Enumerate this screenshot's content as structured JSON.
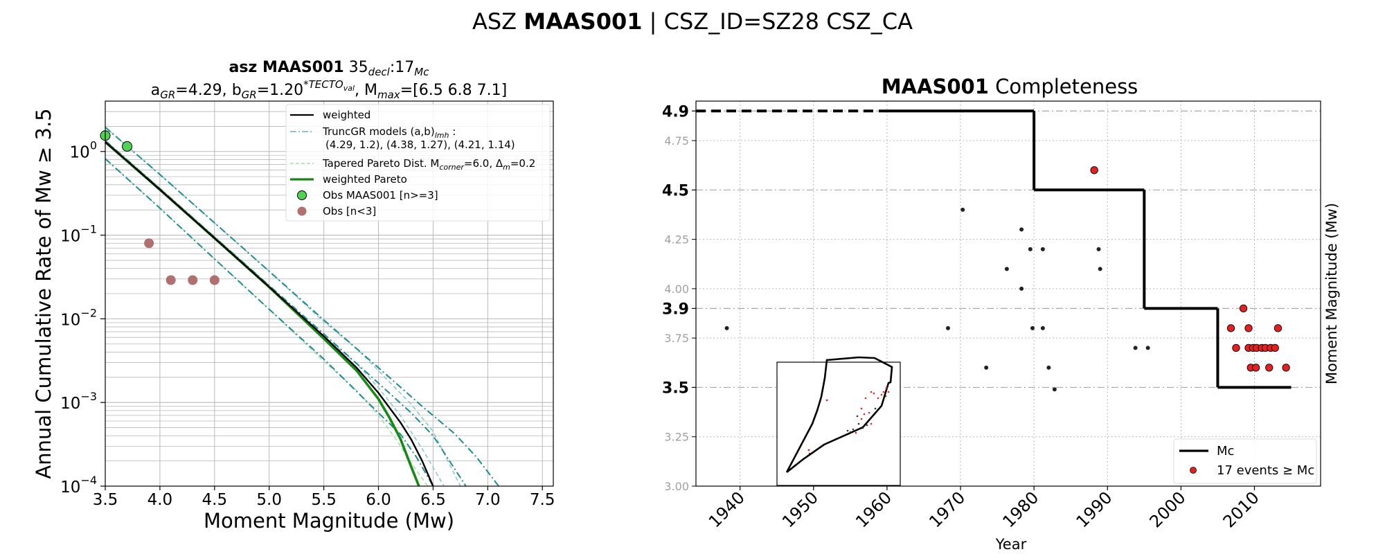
{
  "figure": {
    "suptitle_prefix": "ASZ",
    "suptitle_bold": "MAAS001",
    "suptitle_suffix": "| CSZ_ID=SZ28 CSZ_CA"
  },
  "colors": {
    "black": "#000000",
    "teal_dark": "#1f8a8f",
    "teal_light": "#8ac9c9",
    "green_light": "#a6dcae",
    "green": "#138a13",
    "obs_green": "#52d152",
    "obs_brown": "#b07070",
    "event_red": "#e62020",
    "grid": "#b8b8b8"
  },
  "chart_data": [
    {
      "type": "line",
      "title_line1_bold": "asz MAAS001",
      "title_line1_rest": "35",
      "title_line1_sub1": "decl",
      "title_line1_mid": ":17",
      "title_line1_sub2": "Mc",
      "title_line2": {
        "a_label": "a",
        "a_sub": "GR",
        "a_value": "=4.29,",
        "b_label": "b",
        "b_sub": "GR",
        "b_value": "=1.20",
        "b_sup": "*TECTO",
        "b_sup_sub": "val",
        "m_label": ", M",
        "m_sub": "max",
        "m_value": "=[6.5 6.8 7.1]"
      },
      "xlabel": "Moment Magnitude (Mw)",
      "ylabel": "Annual Cumulative Rate of Mw  ≥  3.5",
      "xlim": [
        3.5,
        7.6
      ],
      "ylim": [
        0.0001,
        4.0
      ],
      "yscale": "log",
      "grid": true,
      "legend_position": "top-right",
      "x_ticks": [
        "3.5",
        "4.0",
        "4.5",
        "5.0",
        "5.5",
        "6.0",
        "6.5",
        "7.0",
        "7.5"
      ],
      "y_ticks": [
        {
          "base": "10",
          "exp": "0"
        },
        {
          "base": "10",
          "exp": "−1"
        },
        {
          "base": "10",
          "exp": "−2"
        },
        {
          "base": "10",
          "exp": "−3"
        },
        {
          "base": "10",
          "exp": "−4"
        }
      ],
      "legend": {
        "weighted": "weighted",
        "trunc_label": "TruncGR models (a,b)",
        "trunc_sub": "lmh",
        "trunc_colon": " :",
        "trunc_values": "(4.29, 1.2), (4.38, 1.27), (4.21, 1.14)",
        "tapered_prefix": "Tapered Pareto Dist. M",
        "tapered_sub": "corner",
        "tapered_mid": "=6.0, Δ",
        "tapered_sub2": "m",
        "tapered_suffix": "=0.2",
        "weighted_pareto": "weighted Pareto",
        "obs_main": "Obs MAAS001 [n>=3]",
        "obs_small": "Obs [n<3]"
      },
      "series": [
        {
          "name": "weighted",
          "color": "#000000",
          "style": "solid",
          "x": [
            3.5,
            4.0,
            4.5,
            5.0,
            5.5,
            5.8,
            6.0,
            6.2,
            6.3,
            6.4,
            6.5
          ],
          "y": [
            1.3,
            0.35,
            0.092,
            0.024,
            0.0062,
            0.0026,
            0.0013,
            0.00058,
            0.00036,
            0.0002,
            0.0001
          ]
        },
        {
          "name": "truncgr_low",
          "color": "#1f8a8f",
          "style": "dashdot",
          "x": [
            3.5,
            4.0,
            4.5,
            5.0,
            5.5,
            6.0,
            6.2,
            6.35,
            6.5
          ],
          "y": [
            0.82,
            0.21,
            0.052,
            0.013,
            0.0033,
            0.00075,
            0.00042,
            0.00022,
            0.0001
          ]
        },
        {
          "name": "truncgr_mid",
          "color": "#1f8a8f",
          "style": "dashdot",
          "x": [
            3.5,
            4.0,
            4.5,
            5.0,
            5.5,
            6.0,
            6.3,
            6.5,
            6.65,
            6.8
          ],
          "y": [
            1.35,
            0.36,
            0.095,
            0.025,
            0.0066,
            0.0017,
            0.00075,
            0.0004,
            0.0002,
            0.0001
          ]
        },
        {
          "name": "truncgr_high",
          "color": "#1f8a8f",
          "style": "dashdot",
          "x": [
            3.5,
            4.0,
            4.5,
            5.0,
            5.5,
            6.0,
            6.4,
            6.7,
            6.9,
            7.1
          ],
          "y": [
            1.95,
            0.53,
            0.14,
            0.037,
            0.0097,
            0.0026,
            0.0009,
            0.00042,
            0.00022,
            0.0001
          ]
        },
        {
          "name": "tapered_low",
          "color": "#a6dcae",
          "style": "dashed",
          "x": [
            3.5,
            4.0,
            4.5,
            5.0,
            5.5,
            5.8,
            6.0,
            6.15,
            6.3,
            6.45
          ],
          "y": [
            0.82,
            0.21,
            0.052,
            0.013,
            0.0031,
            0.0014,
            0.0007,
            0.00038,
            0.00019,
            0.0001
          ]
        },
        {
          "name": "tapered_mid",
          "color": "#8ac9c9",
          "style": "dashed",
          "x": [
            3.5,
            4.0,
            4.5,
            5.0,
            5.5,
            5.8,
            6.0,
            6.2,
            6.4,
            6.6
          ],
          "y": [
            1.35,
            0.36,
            0.095,
            0.025,
            0.0062,
            0.0029,
            0.0015,
            0.0007,
            0.00028,
            0.0001
          ]
        },
        {
          "name": "tapered_high",
          "color": "#8ac9c9",
          "style": "dashed",
          "x": [
            3.5,
            4.0,
            4.5,
            5.0,
            5.5,
            5.8,
            6.0,
            6.3,
            6.5,
            6.75
          ],
          "y": [
            1.95,
            0.53,
            0.14,
            0.037,
            0.0092,
            0.0044,
            0.0024,
            0.00095,
            0.00045,
            0.0001
          ]
        },
        {
          "name": "weighted Pareto",
          "color": "#138a13",
          "style": "solid",
          "x": [
            3.5,
            4.0,
            4.5,
            5.0,
            5.5,
            5.8,
            6.0,
            6.1,
            6.2,
            6.3,
            6.37
          ],
          "y": [
            1.3,
            0.35,
            0.092,
            0.024,
            0.0058,
            0.0024,
            0.0011,
            0.00066,
            0.00037,
            0.00017,
            0.0001
          ]
        }
      ],
      "observations": [
        {
          "group": "main",
          "x": 3.5,
          "y": 1.55
        },
        {
          "group": "main",
          "x": 3.7,
          "y": 1.15
        },
        {
          "group": "small",
          "x": 3.9,
          "y": 0.08
        },
        {
          "group": "small",
          "x": 4.1,
          "y": 0.029
        },
        {
          "group": "small",
          "x": 4.3,
          "y": 0.029
        },
        {
          "group": "small",
          "x": 4.5,
          "y": 0.029
        }
      ]
    },
    {
      "type": "scatter",
      "title_bold": "MAAS001",
      "title_rest": "Completeness",
      "xlabel": "Year",
      "ylabel": "Moment Magnitude (Mw)",
      "xlim": [
        1934,
        2019
      ],
      "ylim": [
        3.0,
        4.95
      ],
      "grid": true,
      "legend_position": "lower-right",
      "x_ticks": [
        "1940",
        "1950",
        "1960",
        "1970",
        "1980",
        "1990",
        "2000",
        "2010"
      ],
      "y_ticks_minor": [
        "3.00",
        "3.25",
        "3.75",
        "4.00",
        "4.25",
        "4.75"
      ],
      "y_ticks_major": [
        "3.5",
        "3.9",
        "4.5",
        "4.9"
      ],
      "legend": {
        "mc": "Mc",
        "events": "17 events  ≥  Mc"
      },
      "mc_steps": [
        {
          "x0": 1934,
          "x1": 1960,
          "y": 4.9,
          "style": "dashed"
        },
        {
          "x0": 1960,
          "x1": 1980,
          "y": 4.9,
          "style": "solid"
        },
        {
          "x0": 1980,
          "x1": 1995,
          "y": 4.5,
          "style": "solid"
        },
        {
          "x0": 1995,
          "x1": 2005,
          "y": 3.9,
          "style": "solid"
        },
        {
          "x0": 2005,
          "x1": 2015,
          "y": 3.5,
          "style": "solid"
        }
      ],
      "events_below": [
        {
          "x": 1938.2,
          "y": 3.8
        },
        {
          "x": 1968.3,
          "y": 3.8
        },
        {
          "x": 1970.3,
          "y": 4.4
        },
        {
          "x": 1973.5,
          "y": 3.6
        },
        {
          "x": 1976.3,
          "y": 4.1
        },
        {
          "x": 1978.3,
          "y": 4.3
        },
        {
          "x": 1978.3,
          "y": 4.0
        },
        {
          "x": 1979.5,
          "y": 4.2
        },
        {
          "x": 1979.8,
          "y": 3.8
        },
        {
          "x": 1981.2,
          "y": 4.2
        },
        {
          "x": 1981.2,
          "y": 3.8
        },
        {
          "x": 1982.0,
          "y": 3.6
        },
        {
          "x": 1982.8,
          "y": 3.49
        },
        {
          "x": 1988.8,
          "y": 4.2
        },
        {
          "x": 1989.0,
          "y": 4.1
        },
        {
          "x": 1993.8,
          "y": 3.7
        },
        {
          "x": 1995.5,
          "y": 3.7
        }
      ],
      "events_above": [
        {
          "x": 1988.2,
          "y": 4.6
        },
        {
          "x": 2006.8,
          "y": 3.8
        },
        {
          "x": 2007.5,
          "y": 3.7
        },
        {
          "x": 2008.5,
          "y": 3.9
        },
        {
          "x": 2009.2,
          "y": 3.8
        },
        {
          "x": 2009.2,
          "y": 3.7
        },
        {
          "x": 2009.5,
          "y": 3.6
        },
        {
          "x": 2009.8,
          "y": 3.7
        },
        {
          "x": 2010.2,
          "y": 3.6
        },
        {
          "x": 2010.3,
          "y": 3.7
        },
        {
          "x": 2011.0,
          "y": 3.7
        },
        {
          "x": 2011.5,
          "y": 3.7
        },
        {
          "x": 2012.0,
          "y": 3.6
        },
        {
          "x": 2012.2,
          "y": 3.7
        },
        {
          "x": 2012.8,
          "y": 3.7
        },
        {
          "x": 2013.2,
          "y": 3.8
        },
        {
          "x": 2014.3,
          "y": 3.6
        }
      ]
    }
  ]
}
